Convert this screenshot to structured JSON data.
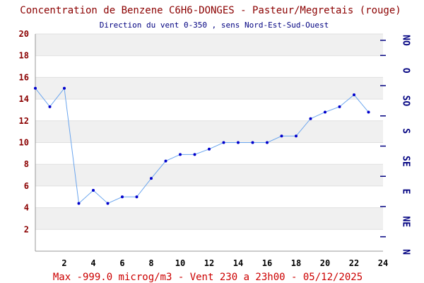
{
  "chart_data": {
    "type": "line",
    "title": "Concentration de Benzene C6H6-DONGES - Pasteur/Megretais (rouge)",
    "subtitle": "Direction du vent 0-350 , sens Nord-Est-Sud-Ouest",
    "footer": "Max -999.0 microg/m3 - Vent 230  a 23h00 - 05/12/2025",
    "xlim": [
      0,
      24
    ],
    "ylim": [
      0,
      20
    ],
    "x_ticks": [
      "2",
      "4",
      "6",
      "8",
      "10",
      "12",
      "14",
      "16",
      "18",
      "20",
      "22",
      "24"
    ],
    "y_ticks": [
      "2",
      "4",
      "6",
      "8",
      "10",
      "12",
      "14",
      "16",
      "18",
      "20"
    ],
    "right_axis_labels": [
      "N",
      "NE",
      "E",
      "SE",
      "S",
      "SO",
      "O",
      "NO"
    ],
    "grid": true,
    "colors": {
      "line": "#6aa5ee",
      "marker": "#0000cc",
      "band": "#f0f0f0",
      "title": "#8b0000",
      "footer": "#cc0000",
      "wind": "#000080"
    },
    "series": [
      {
        "x": [
          0,
          1,
          2,
          3,
          4,
          5,
          6,
          7,
          8,
          9,
          10,
          11,
          12,
          13,
          14,
          15,
          16,
          17,
          18,
          19,
          20,
          21,
          22,
          23
        ],
        "values": [
          15.0,
          13.3,
          15.0,
          4.4,
          5.6,
          4.4,
          5.0,
          5.0,
          6.7,
          8.3,
          8.9,
          8.9,
          9.4,
          10.0,
          10.0,
          10.0,
          10.0,
          10.6,
          10.6,
          12.2,
          12.8,
          13.3,
          14.4,
          12.8
        ]
      }
    ]
  }
}
